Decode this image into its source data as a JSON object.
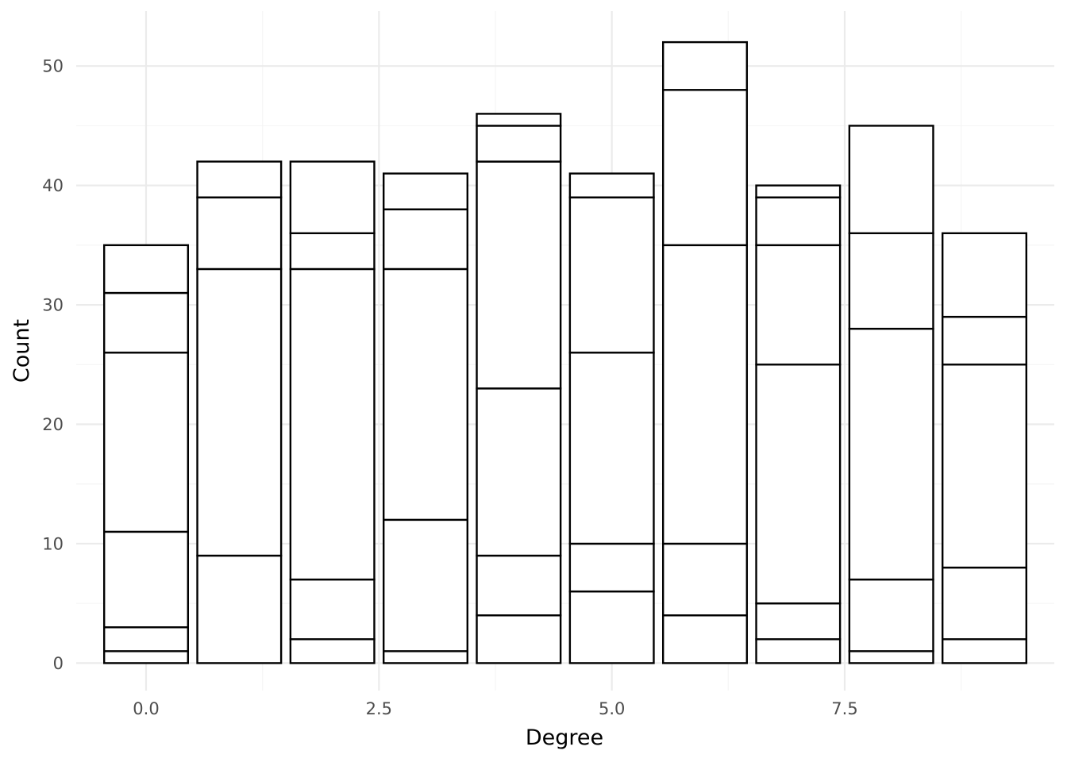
{
  "chart_data": {
    "type": "bar",
    "stacked": true,
    "title": "",
    "xlabel": "Degree",
    "ylabel": "Count",
    "x": [
      0,
      1,
      2,
      3,
      4,
      5,
      6,
      7,
      8,
      9
    ],
    "segment_boundaries": [
      [
        1,
        3,
        11,
        26,
        31,
        35
      ],
      [
        9,
        33,
        39,
        42
      ],
      [
        2,
        7,
        33,
        36,
        42
      ],
      [
        1,
        12,
        33,
        38,
        41
      ],
      [
        4,
        9,
        23,
        42,
        45,
        46
      ],
      [
        6,
        10,
        26,
        39,
        41
      ],
      [
        4,
        10,
        35,
        48,
        52
      ],
      [
        2,
        5,
        25,
        35,
        39,
        40
      ],
      [
        1,
        7,
        28,
        36,
        45
      ],
      [
        2,
        8,
        25,
        29,
        36
      ]
    ],
    "totals": [
      35,
      42,
      42,
      41,
      46,
      41,
      52,
      40,
      45,
      36
    ],
    "xlim": [
      -0.75,
      9.75
    ],
    "ylim": [
      -2.3,
      54.6
    ],
    "x_ticks": [
      0,
      2.5,
      5,
      7.5
    ],
    "x_tick_labels": [
      "0.0",
      "2.5",
      "5.0",
      "7.5"
    ],
    "y_ticks": [
      0,
      10,
      20,
      30,
      40,
      50
    ],
    "y_tick_labels": [
      "0",
      "10",
      "20",
      "30",
      "40",
      "50"
    ],
    "grid": true,
    "legend": "none",
    "colors": {
      "bar_fill": "#ffffff",
      "bar_outline": "#000000",
      "grid_major": "#ebebeb",
      "grid_minor": "#f5f5f5"
    }
  }
}
